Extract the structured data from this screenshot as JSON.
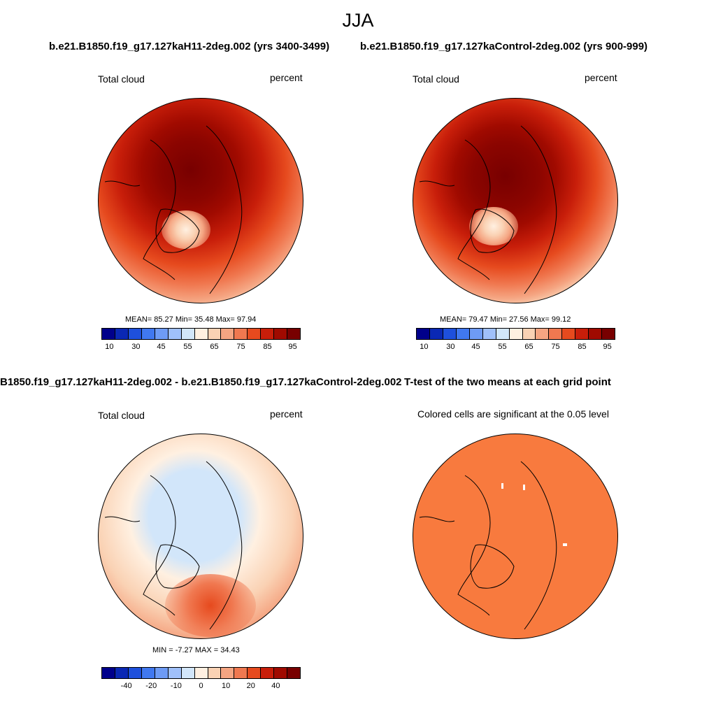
{
  "main_title": "JJA",
  "panels": {
    "top_left": {
      "header": "b.e21.B1850.f19_g17.127kaH11-2deg.002 (yrs 3400-3499)",
      "variable": "Total cloud",
      "units": "percent",
      "stats": "MEAN=  85.27  Min=  35.48  Max=  97.94",
      "tick_labels": [
        "10",
        "30",
        "45",
        "55",
        "65",
        "75",
        "85",
        "95"
      ]
    },
    "top_right": {
      "header": "b.e21.B1850.f19_g17.127kaControl-2deg.002 (yrs 900-999)",
      "variable": "Total cloud",
      "units": "percent",
      "stats": "MEAN=  79.47  Min=  27.56  Max=  99.12",
      "tick_labels": [
        "10",
        "30",
        "45",
        "55",
        "65",
        "75",
        "85",
        "95"
      ]
    },
    "bottom_left": {
      "header": "B1850.f19_g17.127kaH11-2deg.002 - b.e21.B1850.f19_g17.127kaControl-2deg.002",
      "variable": "Total cloud",
      "units": "percent",
      "stats": "MIN =  -7.27 MAX =  34.43",
      "tick_labels": [
        "-40",
        "-20",
        "-10",
        "0",
        "10",
        "20",
        "40"
      ]
    },
    "bottom_right": {
      "header": "T-test of the two means at each grid point",
      "subtitle": "Colored cells are significant at the 0.05 level"
    }
  },
  "colors": {
    "abs_scale": [
      "#00008b",
      "#0a28b4",
      "#1e50dc",
      "#4078f0",
      "#6e9bf5",
      "#a0c0fa",
      "#d2e6fa",
      "#fff0e1",
      "#fad2b4",
      "#f5a582",
      "#f07850",
      "#e64a1e",
      "#c81e0a",
      "#a00a00",
      "#780000"
    ],
    "diff_scale": [
      "#00008b",
      "#0a28b4",
      "#1e50dc",
      "#4078f0",
      "#6e9bf5",
      "#a0c0fa",
      "#d2e6fa",
      "#fff0e1",
      "#fad2b4",
      "#f5a582",
      "#f07850",
      "#e64a1e",
      "#c81e0a",
      "#a00a00",
      "#780000"
    ],
    "significance_fill": "#f87a3e"
  }
}
